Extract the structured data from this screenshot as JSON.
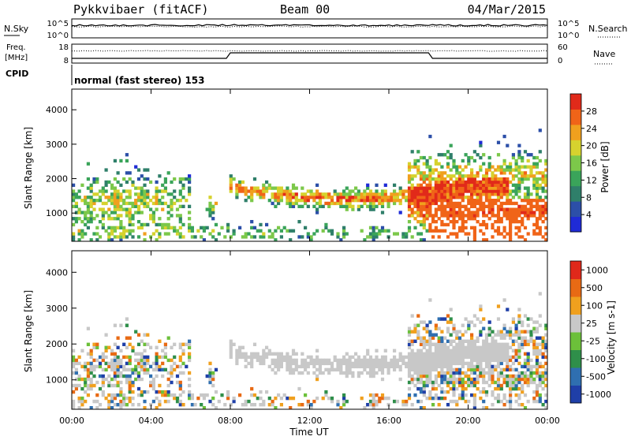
{
  "header": {
    "station": "Pykkvibaer (fitACF)",
    "beam": "Beam 00",
    "date": "04/Mar/2015"
  },
  "strip_labels": {
    "nsky": "N.Sky",
    "nsearch": "N.Search",
    "freq_line1": "Freq.",
    "freq_line2": "[MHz]",
    "nave": "Nave",
    "cpid": "CPID",
    "cpid_value": "normal (fast stereo) 153",
    "nsky_ticks": [
      "10^5",
      "10^0"
    ],
    "nsearch_ticks": [
      "10^5",
      "10^0"
    ],
    "freq_ticks": [
      "18",
      "8"
    ],
    "nave_ticks": [
      "60",
      "0"
    ]
  },
  "axes": {
    "xlabel": "Time UT",
    "x_ticks": [
      "00:00",
      "04:00",
      "08:00",
      "12:00",
      "16:00",
      "20:00",
      "00:00"
    ]
  },
  "chart_data": [
    {
      "type": "heatmap",
      "ylabel": "Slant Range [km]",
      "ylim": [
        180,
        4600
      ],
      "y_ticks": [
        1000,
        2000,
        3000,
        4000
      ],
      "xlim_hours": [
        0,
        24
      ],
      "colorbar": {
        "label": "Power [dB]",
        "tick_labels": [
          "28",
          "24",
          "20",
          "16",
          "12",
          "8",
          "4"
        ],
        "tick_values": [
          28,
          24,
          20,
          16,
          12,
          8,
          4
        ],
        "range": [
          0,
          32
        ],
        "colors": [
          "#1f2bd6",
          "#2c4fa8",
          "#2f7f6a",
          "#3aa45a",
          "#7cc84a",
          "#d6d22e",
          "#f0a01e",
          "#f06418",
          "#e12a1a"
        ]
      }
    },
    {
      "type": "heatmap",
      "ylabel": "Velocity [m s^-1]",
      "ylabel_left": "Slant Range [km]",
      "ylim": [
        180,
        4600
      ],
      "y_ticks": [
        1000,
        2000,
        3000,
        4000
      ],
      "xlim_hours": [
        0,
        24
      ],
      "colorbar": {
        "label": "Velocity [m s-1]",
        "tick_labels": [
          "1000",
          "500",
          "100",
          "25",
          "-25",
          "-100",
          "-500",
          "-1000"
        ],
        "colors": [
          "#1f3fa8",
          "#2f6fb0",
          "#2f8f4a",
          "#6cc03a",
          "#c8c8c8",
          "#f0a01e",
          "#e86a14",
          "#e0281a"
        ]
      }
    }
  ]
}
